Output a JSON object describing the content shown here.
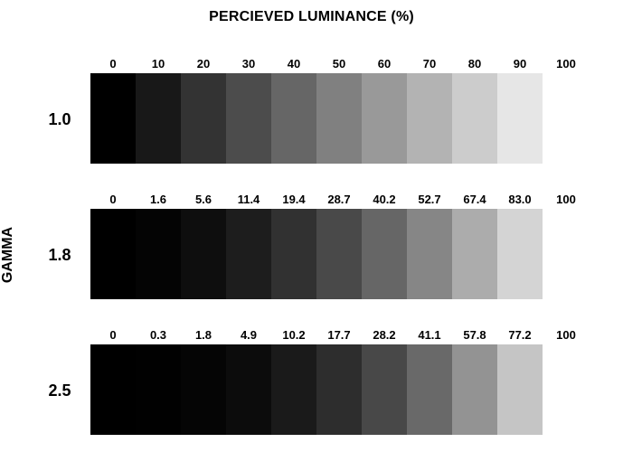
{
  "title": "PERCIEVED LUMINANCE  (%)",
  "axis_label": "GAMMA",
  "rows": [
    {
      "gamma": "1.0",
      "ticks": [
        "0",
        "10",
        "20",
        "30",
        "40",
        "50",
        "60",
        "70",
        "80",
        "90",
        "100"
      ],
      "swatch_colors": [
        "#000000",
        "#181818",
        "#333333",
        "#4c4c4c",
        "#666666",
        "#808080",
        "#999999",
        "#b3b3b3",
        "#cccccc",
        "#e6e6e6"
      ]
    },
    {
      "gamma": "1.8",
      "ticks": [
        "0",
        "1.6",
        "5.6",
        "11.4",
        "19.4",
        "28.7",
        "40.2",
        "52.7",
        "67.4",
        "83.0",
        "100"
      ],
      "swatch_colors": [
        "#000000",
        "#040404",
        "#0e0e0e",
        "#1d1d1d",
        "#313131",
        "#494949",
        "#666666",
        "#868686",
        "#acacac",
        "#d4d4d4"
      ]
    },
    {
      "gamma": "2.5",
      "ticks": [
        "0",
        "0.3",
        "1.8",
        "4.9",
        "10.2",
        "17.7",
        "28.2",
        "41.1",
        "57.8",
        "77.2",
        "100"
      ],
      "swatch_colors": [
        "#000000",
        "#010101",
        "#050505",
        "#0c0c0c",
        "#1a1a1a",
        "#2d2d2d",
        "#484848",
        "#696969",
        "#939393",
        "#c5c5c5"
      ]
    }
  ]
}
